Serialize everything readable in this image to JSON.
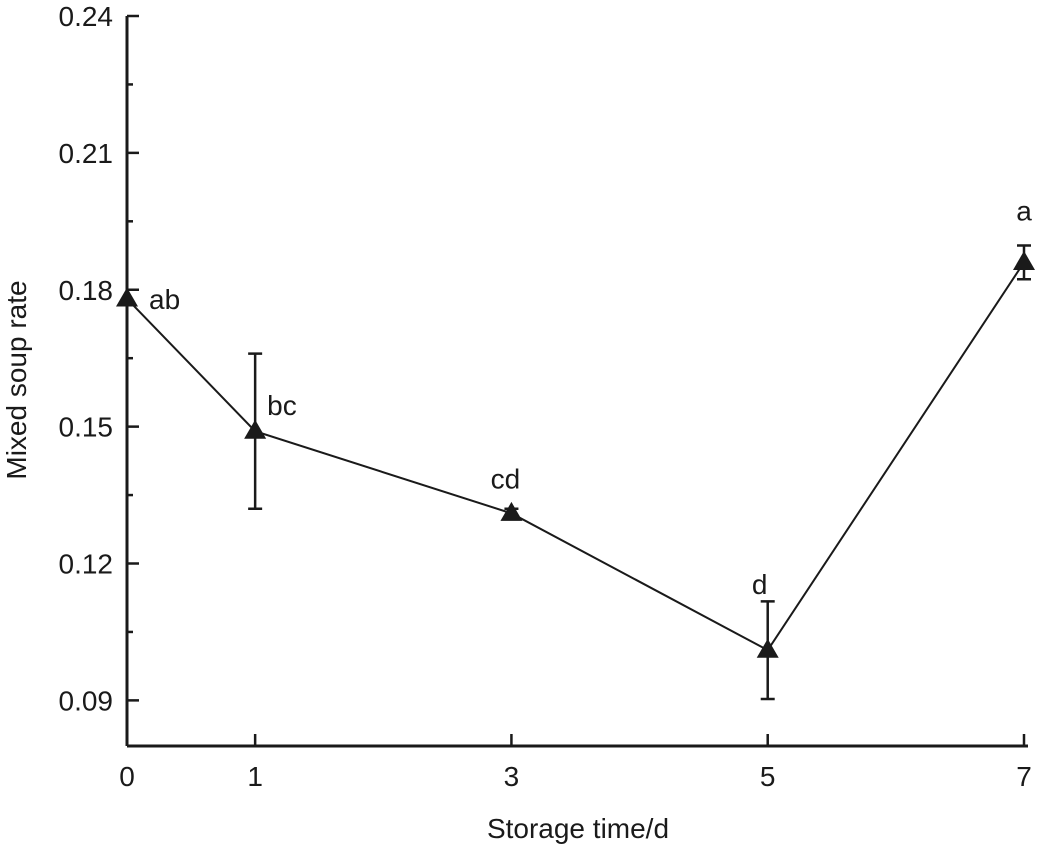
{
  "chart_data": {
    "type": "line",
    "xlabel": "Storage time/d",
    "ylabel": "Mixed soup rate",
    "x_ticks": [
      0,
      1,
      3,
      5,
      7
    ],
    "x_tick_labels": [
      "0",
      "1",
      "3",
      "5",
      "7"
    ],
    "y_ticks": [
      0.09,
      0.12,
      0.15,
      0.18,
      0.21,
      0.24
    ],
    "y_tick_labels": [
      "0.09",
      "0.12",
      "0.15",
      "0.18",
      "0.21",
      "0.24"
    ],
    "y_minor_ticks": [
      0.105,
      0.135,
      0.165,
      0.195,
      0.225
    ],
    "xlim": [
      0,
      7
    ],
    "ylim": [
      0.08,
      0.24
    ],
    "grid": false,
    "series": [
      {
        "marker": "triangle",
        "color": "#1a1a1a",
        "points": [
          {
            "x": 0,
            "y": 0.178,
            "err": 0.0,
            "label": "ab"
          },
          {
            "x": 1,
            "y": 0.149,
            "err": 0.017,
            "label": "bc"
          },
          {
            "x": 3,
            "y": 0.131,
            "err": 0.001,
            "label": "cd"
          },
          {
            "x": 5,
            "y": 0.101,
            "err": 0.0107,
            "label": "d"
          },
          {
            "x": 7,
            "y": 0.186,
            "err": 0.0037,
            "label": "a"
          }
        ]
      }
    ]
  }
}
